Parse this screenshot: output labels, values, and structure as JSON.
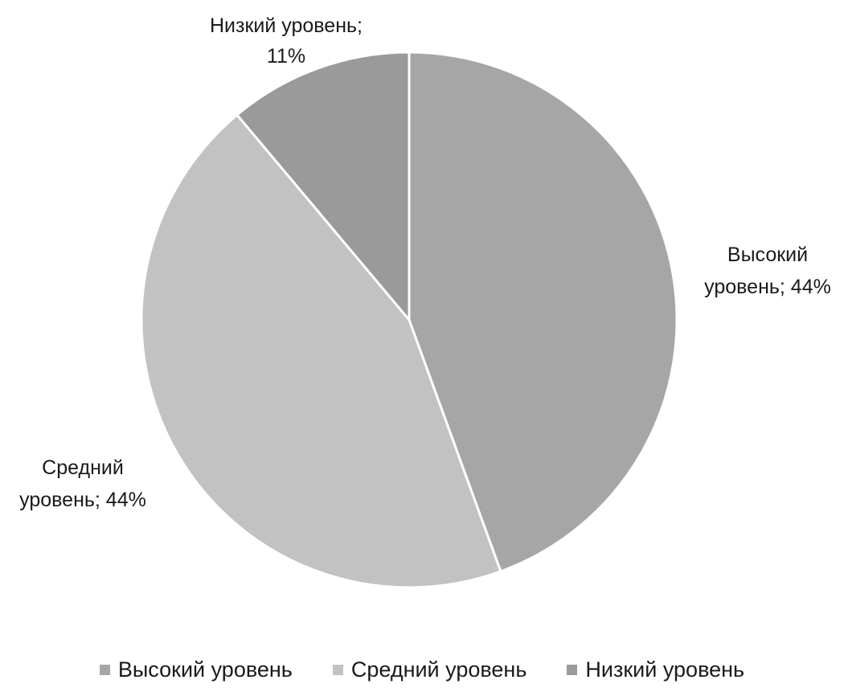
{
  "chart_data": {
    "type": "pie",
    "title": "",
    "categories": [
      "Высокий уровень",
      "Средний уровень",
      "Низкий уровень"
    ],
    "values": [
      44,
      44,
      11
    ],
    "data_labels": [
      [
        "Высокий",
        "уровень; 44%"
      ],
      [
        "Средний",
        "уровень; 44%"
      ],
      [
        "Низкий уровень;",
        "11%"
      ]
    ],
    "colors": [
      "#a6a6a6",
      "#c2c2c2",
      "#9a9a9a"
    ],
    "start_angle": "12 o'clock, clockwise",
    "legend_position": "bottom"
  }
}
